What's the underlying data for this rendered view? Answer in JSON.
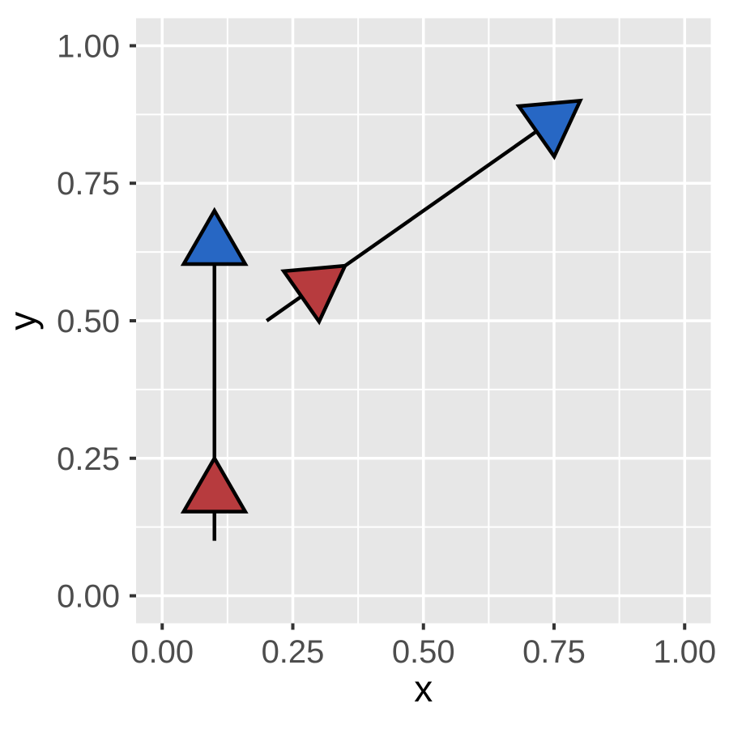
{
  "chart_data": {
    "type": "arrow",
    "title": "",
    "xlabel": "x",
    "ylabel": "y",
    "xlim": [
      -0.05,
      1.05
    ],
    "ylim": [
      -0.05,
      1.05
    ],
    "grid": true,
    "legend": "none",
    "x_ticks": {
      "values": [
        0,
        0.25,
        0.5,
        0.75,
        1
      ],
      "labels": [
        "0.00",
        "0.25",
        "0.50",
        "0.75",
        "1.00"
      ]
    },
    "y_ticks": {
      "values": [
        0,
        0.25,
        0.5,
        0.75,
        1
      ],
      "labels": [
        "0.00",
        "0.25",
        "0.50",
        "0.75",
        "1.00"
      ]
    },
    "x_minor": [
      0.125,
      0.375,
      0.625,
      0.875
    ],
    "y_minor": [
      0.125,
      0.375,
      0.625,
      0.875
    ],
    "arrows": [
      {
        "x": 0.1,
        "y": 0.1,
        "xend": 0.1,
        "yend": 0.7,
        "heads": [
          {
            "position": 0.25,
            "fill": "#b73b3e"
          },
          {
            "position": 1.0,
            "fill": "#2767c4"
          }
        ]
      },
      {
        "x": 0.2,
        "y": 0.5,
        "xend": 0.8,
        "yend": 0.9,
        "heads": [
          {
            "position": 0.25,
            "fill": "#b73b3e"
          },
          {
            "position": 1.0,
            "fill": "#2767c4"
          }
        ]
      }
    ],
    "colors": {
      "panel_bg": "#e7e7e7",
      "grid_major": "#ffffff",
      "grid_minor": "#ffffff",
      "shaft": "#000000",
      "head_stroke": "#000000",
      "head_fill_mid": "#b73b3e",
      "head_fill_end": "#2767c4",
      "tick_mark": "#333333",
      "tick_label": "#4d4d4d",
      "axis_title": "#000000"
    }
  }
}
